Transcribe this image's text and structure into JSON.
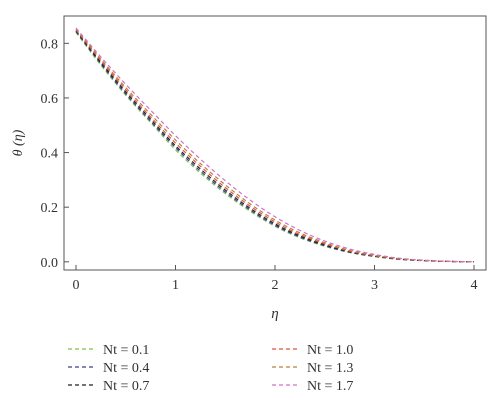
{
  "chart_data": {
    "type": "line",
    "title": "",
    "xlabel": "η",
    "ylabel": "θ (η)",
    "xlim": [
      0,
      4
    ],
    "ylim": [
      -0.03,
      0.9
    ],
    "xticks": [
      0,
      1,
      2,
      3,
      4
    ],
    "xtick_labels": [
      "0",
      "1",
      "2",
      "3",
      "4"
    ],
    "yticks": [
      0.0,
      0.2,
      0.4,
      0.6,
      0.8
    ],
    "ytick_labels": [
      "0.0",
      "0.2",
      "0.4",
      "0.6",
      "0.8"
    ],
    "grid": false,
    "legend_position": "below",
    "x": [
      0,
      0.25,
      0.5,
      0.75,
      1.0,
      1.25,
      1.5,
      1.75,
      2.0,
      2.25,
      2.5,
      2.75,
      3.0,
      3.25,
      3.5,
      3.75,
      4.0
    ],
    "series": [
      {
        "name": "Nt = 0.1",
        "color": "#7cc04b",
        "values": [
          0.84,
          0.72,
          0.61,
          0.51,
          0.41,
          0.325,
          0.25,
          0.185,
          0.13,
          0.088,
          0.057,
          0.034,
          0.019,
          0.009,
          0.004,
          0.0012,
          0.0
        ]
      },
      {
        "name": "Nt = 0.4",
        "color": "#3b3f8f",
        "values": [
          0.843,
          0.725,
          0.615,
          0.515,
          0.418,
          0.332,
          0.256,
          0.19,
          0.134,
          0.091,
          0.059,
          0.035,
          0.02,
          0.0095,
          0.0042,
          0.0013,
          0.0
        ]
      },
      {
        "name": "Nt = 0.7",
        "color": "#222222",
        "values": [
          0.846,
          0.73,
          0.622,
          0.522,
          0.425,
          0.34,
          0.263,
          0.196,
          0.139,
          0.095,
          0.062,
          0.037,
          0.021,
          0.01,
          0.0045,
          0.0014,
          0.0
        ]
      },
      {
        "name": "Nt = 1.0",
        "color": "#e0543a",
        "values": [
          0.849,
          0.736,
          0.63,
          0.53,
          0.435,
          0.35,
          0.272,
          0.204,
          0.146,
          0.1,
          0.066,
          0.039,
          0.022,
          0.011,
          0.0048,
          0.0015,
          0.0
        ]
      },
      {
        "name": "Nt = 1.3",
        "color": "#b5803a",
        "values": [
          0.852,
          0.742,
          0.638,
          0.54,
          0.446,
          0.36,
          0.282,
          0.212,
          0.153,
          0.106,
          0.07,
          0.042,
          0.024,
          0.012,
          0.0052,
          0.0016,
          0.0
        ]
      },
      {
        "name": "Nt = 1.7",
        "color": "#d070c8",
        "values": [
          0.856,
          0.75,
          0.65,
          0.555,
          0.462,
          0.376,
          0.297,
          0.226,
          0.165,
          0.115,
          0.076,
          0.047,
          0.027,
          0.013,
          0.0058,
          0.0018,
          0.0
        ]
      }
    ]
  }
}
